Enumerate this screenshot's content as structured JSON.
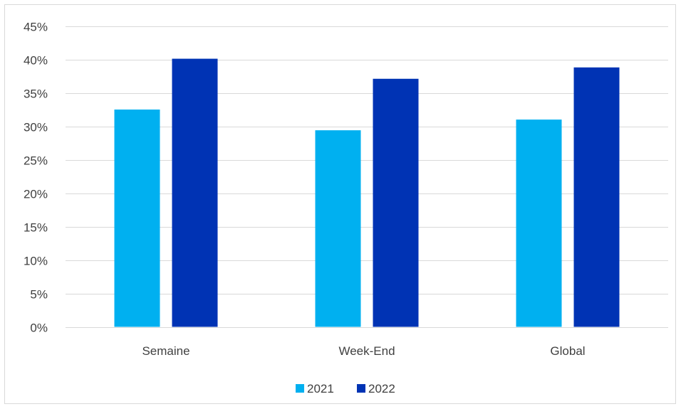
{
  "chart_data": {
    "type": "bar",
    "title": "",
    "xlabel": "",
    "ylabel": "",
    "categories": [
      "Semaine",
      "Week-End",
      "Global"
    ],
    "series": [
      {
        "name": "2021",
        "values": [
          32.5,
          29.4,
          31.0
        ],
        "color": "#00b0f0"
      },
      {
        "name": "2022",
        "values": [
          40.1,
          37.1,
          38.8
        ],
        "color": "#0033b4"
      }
    ],
    "ylim": [
      0,
      45
    ],
    "y_ticks": [
      0,
      5,
      10,
      15,
      20,
      25,
      30,
      35,
      40,
      45
    ],
    "y_tick_format": "percent",
    "grid": true,
    "legend_position": "bottom"
  }
}
